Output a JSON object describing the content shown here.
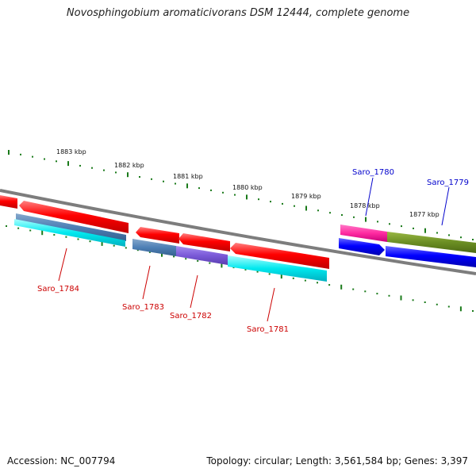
{
  "title": "Novosphingobium aromaticivorans DSM 12444, complete genome",
  "footer": {
    "accession": "Accession: NC_007794",
    "summary": "Topology: circular; Length: 3,561,584 bp; Genes: 3,397"
  },
  "ruler": {
    "labels": [
      "1883 kbp",
      "1882 kbp",
      "1881 kbp",
      "1880 kbp",
      "1879 kbp",
      "1878 kbp",
      "1877 kbp"
    ]
  },
  "colors": {
    "backbone": "#808080",
    "tick": "#1a7a1a",
    "reverse_label": "#cc0000",
    "forward_label": "#0000cc",
    "cds_reverse": "#ff0000",
    "cds_forward": "#0000ff"
  },
  "genes": [
    {
      "name": "Saro_1784",
      "strand": "reverse"
    },
    {
      "name": "Saro_1783",
      "strand": "reverse"
    },
    {
      "name": "Saro_1782",
      "strand": "reverse"
    },
    {
      "name": "Saro_1781",
      "strand": "reverse"
    },
    {
      "name": "Saro_1780",
      "strand": "forward"
    },
    {
      "name": "Saro_1779",
      "strand": "forward"
    }
  ]
}
